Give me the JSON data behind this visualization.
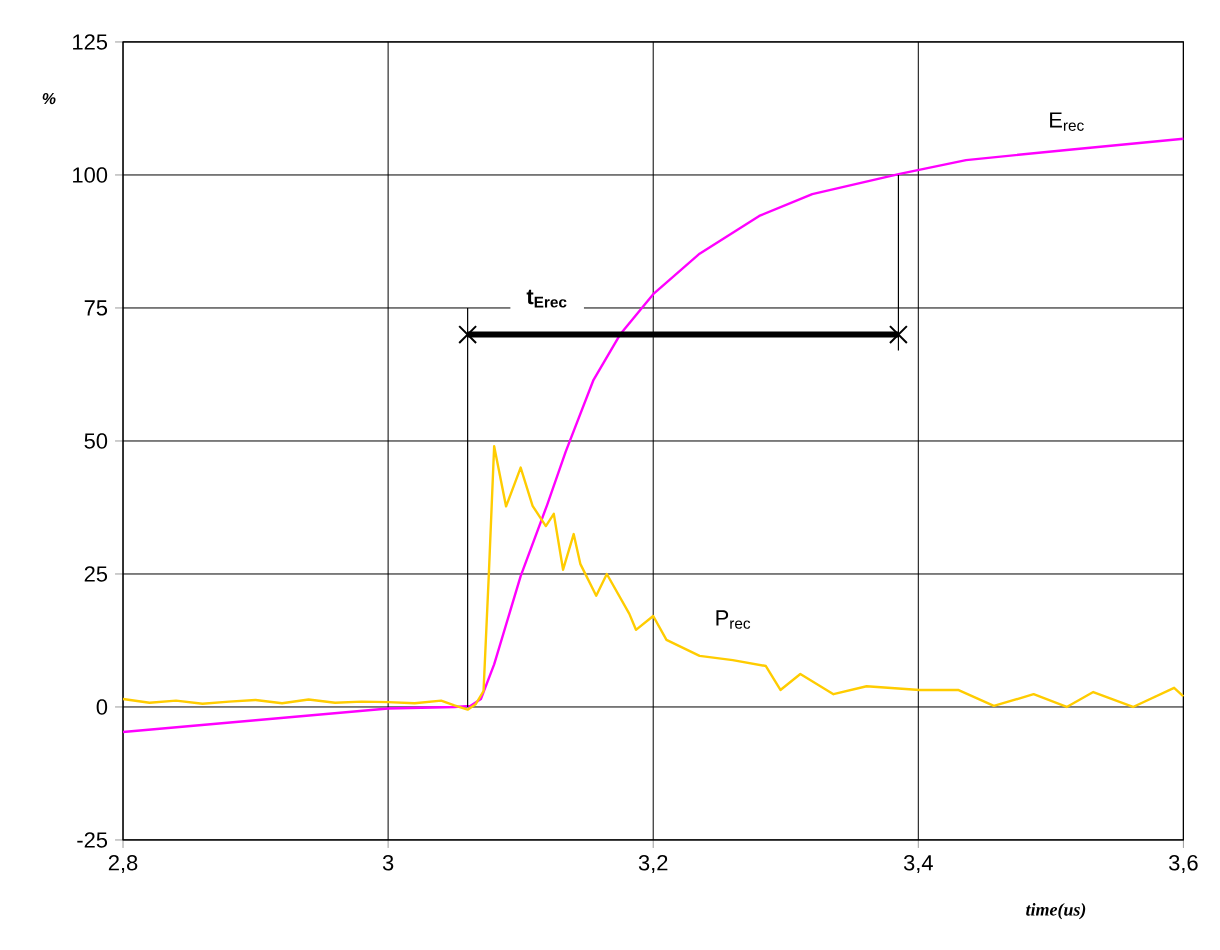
{
  "chart_data": {
    "type": "line",
    "xlabel": "time(us)",
    "ylabel": "%",
    "xlim": [
      2.8,
      3.6
    ],
    "ylim": [
      -25,
      125
    ],
    "xticks": [
      {
        "value": 2.8,
        "label": "2,8"
      },
      3,
      {
        "value": 3.2,
        "label": "3,2"
      },
      {
        "value": 3.4,
        "label": "3,4"
      },
      {
        "value": 3.6,
        "label": "3,6"
      }
    ],
    "yticks": [
      -25,
      0,
      25,
      50,
      75,
      100,
      125
    ],
    "grid": true,
    "annotations": [
      {
        "text": "t$_{Erec}$",
        "x": 3.12,
        "y": 70
      }
    ],
    "series": [
      {
        "name": "E$_{rec}$",
        "color": "#ff00ff",
        "x": [
          2.8,
          2.9,
          3.0,
          3.05,
          3.062,
          3.07,
          3.08,
          3.1,
          3.12,
          3.134,
          3.155,
          3.175,
          3.2,
          3.235,
          3.28,
          3.32,
          3.386,
          3.436,
          3.512,
          3.6
        ],
        "values": [
          -4.7,
          -2.5,
          -0.3,
          0,
          0.2,
          1.5,
          8,
          24.6,
          38,
          48,
          61.5,
          70,
          77.6,
          85.2,
          92.3,
          96.4,
          100.2,
          102.8,
          104.7,
          106.8
        ]
      },
      {
        "name": "P$_{rec}$",
        "color": "#ffcc00",
        "x": [
          2.8,
          2.82,
          2.84,
          2.86,
          2.88,
          2.9,
          2.92,
          2.94,
          2.96,
          2.98,
          3.0,
          3.02,
          3.04,
          3.05,
          3.06,
          3.066,
          3.072,
          3.076,
          3.08,
          3.089,
          3.1,
          3.109,
          3.119,
          3.125,
          3.132,
          3.14,
          3.145,
          3.157,
          3.165,
          3.182,
          3.187,
          3.2,
          3.21,
          3.235,
          3.26,
          3.285,
          3.296,
          3.311,
          3.336,
          3.361,
          3.401,
          3.43,
          3.457,
          3.487,
          3.512,
          3.532,
          3.562,
          3.593,
          3.6
        ],
        "values": [
          1.5,
          0.8,
          1.2,
          0.6,
          1.0,
          1.3,
          0.7,
          1.4,
          0.8,
          1.0,
          0.9,
          0.7,
          1.2,
          0.3,
          -0.5,
          0.5,
          3,
          25,
          49,
          37.7,
          45,
          37.8,
          34,
          36.3,
          25.8,
          32.5,
          26.9,
          20.9,
          25,
          17.5,
          14.5,
          17.1,
          12.6,
          9.6,
          8.8,
          7.7,
          3.2,
          6.2,
          2.4,
          3.9,
          3.2,
          3.2,
          0.2,
          2.4,
          0,
          2.8,
          0,
          3.6,
          2
        ]
      },
      {
        "color": "#000000",
        "marker": "cross",
        "x": [
          3.06,
          3.385
        ],
        "values": [
          70,
          70
        ]
      },
      {
        "color": "#000000",
        "x": [
          3.06,
          3.06
        ],
        "values": [
          75,
          0
        ]
      },
      {
        "color": "#000000",
        "x": [
          3.385,
          3.385
        ],
        "values": [
          100,
          67
        ]
      }
    ]
  }
}
